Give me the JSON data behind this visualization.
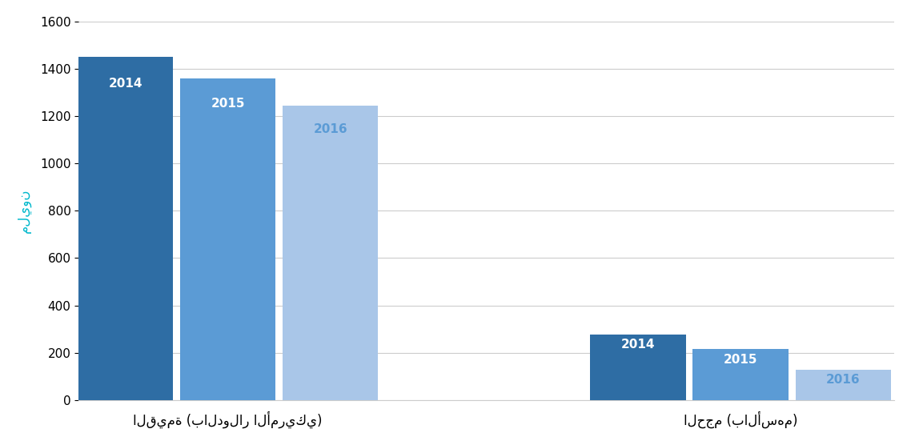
{
  "groups": [
    {
      "label": "القيمة (بالدولار الأمريكي)",
      "bars": [
        {
          "year": "2014",
          "value": 1450,
          "color": "#2e6da4"
        },
        {
          "year": "2015",
          "value": 1360,
          "color": "#5b9bd5"
        },
        {
          "year": "2016",
          "value": 1245,
          "color": "#a9c6e8"
        }
      ]
    },
    {
      "label": "الحجم (بالأسهم)",
      "bars": [
        {
          "year": "2014",
          "value": 278,
          "color": "#2e6da4"
        },
        {
          "year": "2015",
          "value": 215,
          "color": "#5b9bd5"
        },
        {
          "year": "2016",
          "value": 128,
          "color": "#a9c6e8"
        }
      ]
    }
  ],
  "ylabel": "مليون",
  "ylabel_color": "#00b8cc",
  "ylim": [
    0,
    1600
  ],
  "yticks": [
    0,
    200,
    400,
    600,
    800,
    1000,
    1200,
    1400,
    1600
  ],
  "bar_width": 0.22,
  "label_color_inside": "#ffffff",
  "label_color_2016": "#5b9bd5",
  "background_color": "#ffffff",
  "grid_color": "#cccccc",
  "font_size_bar_label": 11,
  "font_size_axis_label": 12,
  "font_size_tick": 11
}
